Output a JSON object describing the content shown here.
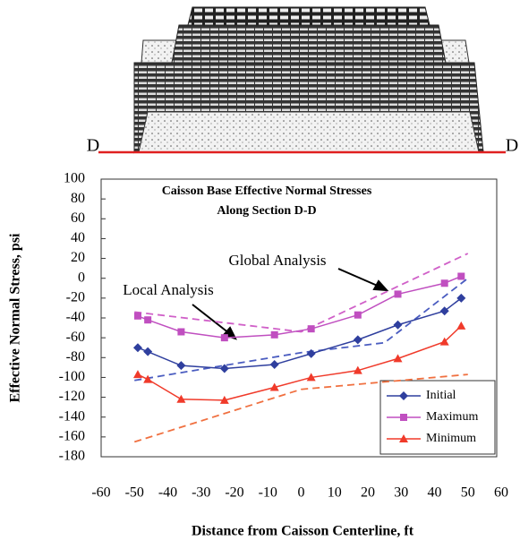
{
  "section_labels": [
    "D",
    "D"
  ],
  "chart_data": {
    "type": "line",
    "title": "Caisson Base Effective Normal Stresses",
    "subtitle": "Along Section D-D",
    "x_label": "Distance from Caisson Centerline, ft",
    "y_label": "Effective Normal Stress, psi",
    "annotations": [
      "Global Analysis",
      "Local Analysis"
    ],
    "xlim": [
      -60,
      60
    ],
    "xticks": [
      -60,
      -50,
      -40,
      -30,
      -20,
      -10,
      0,
      10,
      20,
      30,
      40,
      50,
      60
    ],
    "ylim": [
      -180,
      100
    ],
    "yticks": [
      100,
      80,
      60,
      40,
      20,
      0,
      -20,
      -40,
      -60,
      -80,
      -100,
      -120,
      -140,
      -160,
      -180
    ],
    "legend": "lower right",
    "series": [
      {
        "name": "Initial",
        "color": "#2f3f9e",
        "marker": "diamond",
        "x": [
          -49,
          -46,
          -36,
          -23,
          -8,
          3,
          17,
          29,
          43,
          48
        ],
        "values": [
          -70,
          -74,
          -88,
          -91,
          -87,
          -76,
          -62,
          -47,
          -33,
          -20
        ]
      },
      {
        "name": "Maximum",
        "color": "#c04fc0",
        "marker": "square",
        "x": [
          -49,
          -46,
          -36,
          -23,
          -8,
          3,
          17,
          29,
          43,
          48
        ],
        "values": [
          -38,
          -42,
          -54,
          -60,
          -57,
          -51,
          -37,
          -16,
          -5,
          2
        ]
      },
      {
        "name": "Minimum",
        "color": "#f03a2a",
        "marker": "triangle",
        "x": [
          -49,
          -46,
          -36,
          -23,
          -8,
          3,
          17,
          29,
          43,
          48
        ],
        "values": [
          -97,
          -102,
          -122,
          -123,
          -110,
          -100,
          -93,
          -81,
          -64,
          -48
        ]
      }
    ],
    "envelopes": [
      {
        "color": "#d060c8",
        "x": [
          -50,
          0,
          50
        ],
        "values": [
          -34,
          -54,
          25
        ]
      },
      {
        "color": "#4a5cc0",
        "x": [
          -50,
          0,
          25,
          50
        ],
        "values": [
          -103,
          -75,
          -65,
          0
        ]
      },
      {
        "color": "#f07040",
        "x": [
          -50,
          0,
          50
        ],
        "values": [
          -165,
          -112,
          -97
        ]
      }
    ]
  }
}
